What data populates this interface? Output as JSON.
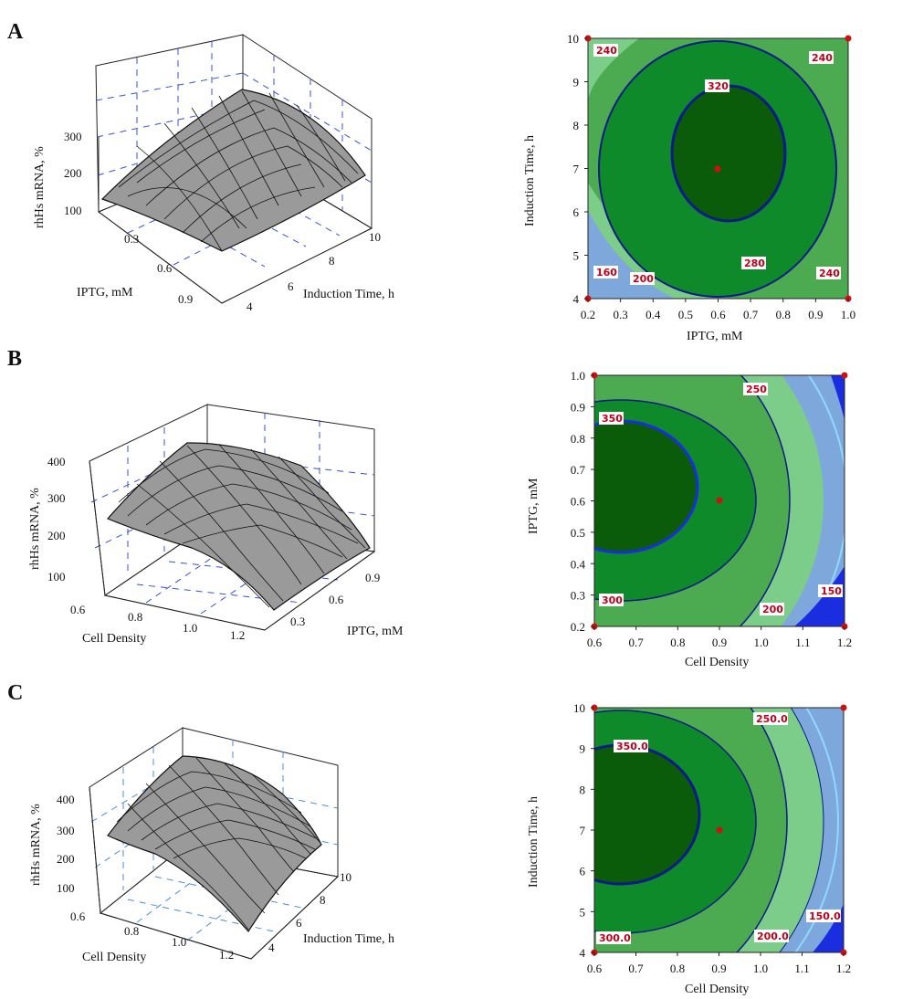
{
  "panels": [
    {
      "label": "A",
      "surface": {
        "type": "surface3d",
        "zlabel": "rhHs mRNA, %",
        "zticks": [
          "300",
          "200",
          "100"
        ],
        "x_label": "IPTG, mM",
        "x_ticks": [
          "0.3",
          "0.6",
          "0.9"
        ],
        "y_label": "Induction Time, h",
        "y_ticks": [
          "4",
          "6",
          "8",
          "10"
        ]
      },
      "contour": {
        "type": "contour",
        "xlabel": "IPTG, mM",
        "ylabel": "Induction Time, h",
        "xlim": [
          0.2,
          1.0
        ],
        "ylim": [
          4,
          10
        ],
        "xticks": [
          "0.2",
          "0.3",
          "0.4",
          "0.5",
          "0.6",
          "0.7",
          "0.8",
          "0.9",
          "1.0"
        ],
        "yticks": [
          "4",
          "5",
          "6",
          "7",
          "8",
          "9",
          "10"
        ],
        "center_point": [
          0.6,
          7
        ],
        "contour_labels": [
          "240",
          "240",
          "320",
          "280",
          "240",
          "200",
          "160"
        ]
      }
    },
    {
      "label": "B",
      "surface": {
        "type": "surface3d",
        "zlabel": "rhHs mRNA, %",
        "zticks": [
          "400",
          "300",
          "200",
          "100"
        ],
        "x_label": "Cell Density",
        "x_ticks": [
          "0.6",
          "0.8",
          "1.0",
          "1.2"
        ],
        "y_label": "IPTG, mM",
        "y_ticks": [
          "0.3",
          "0.6",
          "0.9"
        ]
      },
      "contour": {
        "type": "contour",
        "xlabel": "Cell Density",
        "ylabel": "IPTG, mM",
        "xlim": [
          0.6,
          1.2
        ],
        "ylim": [
          0.2,
          1.0
        ],
        "xticks": [
          "0.6",
          "0.7",
          "0.8",
          "0.9",
          "1.0",
          "1.1",
          "1.2"
        ],
        "yticks": [
          "0.2",
          "0.3",
          "0.4",
          "0.5",
          "0.6",
          "0.7",
          "0.8",
          "0.9",
          "1.0"
        ],
        "center_point": [
          0.9,
          0.6
        ],
        "contour_labels": [
          "250",
          "350",
          "300",
          "200",
          "150"
        ]
      }
    },
    {
      "label": "C",
      "surface": {
        "type": "surface3d",
        "zlabel": "rhHs mRNA, %",
        "zticks": [
          "400",
          "300",
          "200",
          "100"
        ],
        "x_label": "Cell Density",
        "x_ticks": [
          "0.6",
          "0.8",
          "1.0",
          "1.2"
        ],
        "y_label": "Induction Time, h",
        "y_ticks": [
          "4",
          "6",
          "8",
          "10"
        ]
      },
      "contour": {
        "type": "contour",
        "xlabel": "Cell Density",
        "ylabel": "Induction Time, h",
        "xlim": [
          0.6,
          1.2
        ],
        "ylim": [
          4,
          10
        ],
        "xticks": [
          "0.6",
          "0.7",
          "0.8",
          "0.9",
          "1.0",
          "1.1",
          "1.2"
        ],
        "yticks": [
          "4",
          "5",
          "6",
          "7",
          "8",
          "9",
          "10"
        ],
        "center_point": [
          0.9,
          7.2
        ],
        "contour_labels": [
          "250.0",
          "350.0",
          "300.0",
          "200.0",
          "150.0"
        ]
      }
    }
  ],
  "colors": {
    "level1": "#0a5c0a",
    "level2": "#0e8a2a",
    "level3": "#4caa50",
    "level4": "#7ccc8a",
    "level5": "#7ea8dc",
    "level6": "#1a2ee0",
    "contour_line": "#0a1a88",
    "surface_fill": "#9a9a9a",
    "surface_line": "#111111",
    "grid_dash": "#3b4fd6",
    "point": "#cc1111"
  }
}
